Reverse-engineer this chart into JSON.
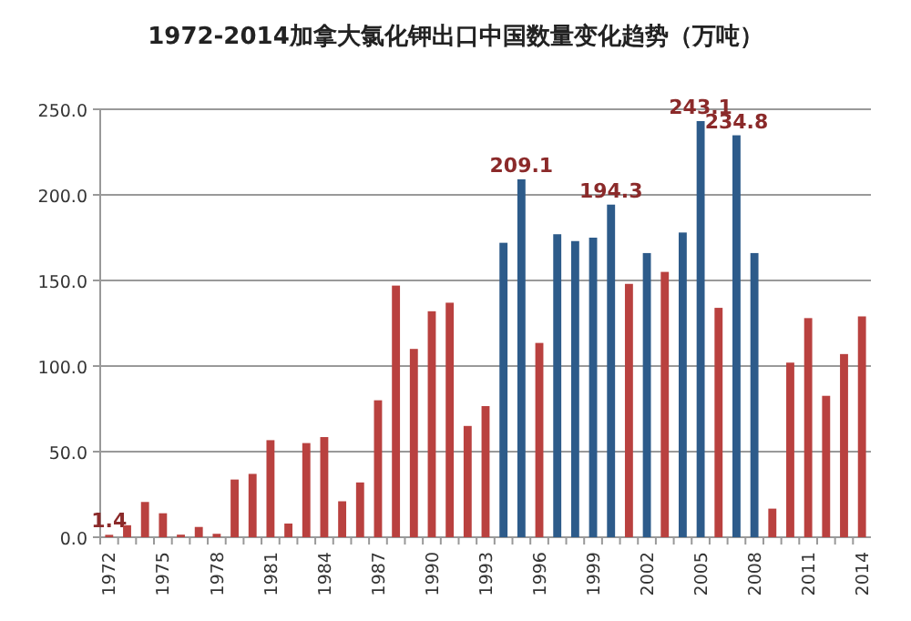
{
  "chart_data": {
    "type": "bar",
    "title": "1972-2014加拿大氯化钾出口中国数量变化趋势（万吨）",
    "categories": [
      "1972",
      null,
      null,
      "1975",
      null,
      null,
      "1978",
      null,
      null,
      "1981",
      null,
      null,
      "1984",
      null,
      null,
      "1987",
      null,
      null,
      "1990",
      null,
      null,
      "1993",
      null,
      null,
      "1996",
      null,
      null,
      "1999",
      null,
      null,
      "2002",
      null,
      null,
      "2005",
      null,
      null,
      "2008",
      null,
      null,
      "2011",
      null,
      null,
      "2014"
    ],
    "values": [
      1.4,
      7,
      20.6,
      14,
      1.5,
      6,
      2,
      33.7,
      37,
      56.7,
      8,
      55,
      58.5,
      21,
      32,
      80,
      147,
      110,
      132,
      137,
      65,
      76.6,
      172,
      209.1,
      113.5,
      177,
      173,
      175,
      194.3,
      148,
      166,
      155,
      178,
      243.1,
      134,
      234.8,
      166,
      16.7,
      102,
      128,
      82.6,
      107,
      129
    ],
    "colors": [
      "#b9413f",
      "#b9413f",
      "#b9413f",
      "#b9413f",
      "#b9413f",
      "#b9413f",
      "#b9413f",
      "#b9413f",
      "#b9413f",
      "#b9413f",
      "#b9413f",
      "#b9413f",
      "#b9413f",
      "#b9413f",
      "#b9413f",
      "#b9413f",
      "#b9413f",
      "#b9413f",
      "#b9413f",
      "#b9413f",
      "#b9413f",
      "#b9413f",
      "#2d5b8a",
      "#2d5b8a",
      "#b9413f",
      "#2d5b8a",
      "#2d5b8a",
      "#2d5b8a",
      "#2d5b8a",
      "#b9413f",
      "#2d5b8a",
      "#b9413f",
      "#2d5b8a",
      "#2d5b8a",
      "#b9413f",
      "#2d5b8a",
      "#2d5b8a",
      "#b9413f",
      "#b9413f",
      "#b9413f",
      "#b9413f",
      "#b9413f",
      "#b9413f"
    ],
    "value_labels": [
      "1.4",
      null,
      null,
      null,
      null,
      null,
      null,
      null,
      null,
      null,
      null,
      null,
      null,
      null,
      null,
      null,
      null,
      null,
      null,
      null,
      null,
      null,
      null,
      "209.1",
      null,
      null,
      null,
      null,
      "194.3",
      null,
      null,
      null,
      null,
      "243.1",
      null,
      "234.8",
      null,
      null,
      null,
      null,
      null,
      null,
      null
    ],
    "ylim": [
      0,
      250
    ],
    "yticks": [
      {
        "value": 0,
        "label": "0.0"
      },
      {
        "value": 50,
        "label": "50.0"
      },
      {
        "value": 100,
        "label": "100.0"
      },
      {
        "value": 150,
        "label": "150.0"
      },
      {
        "value": 200,
        "label": "200.0"
      },
      {
        "value": 250,
        "label": "250.0"
      }
    ],
    "grid": "y"
  }
}
